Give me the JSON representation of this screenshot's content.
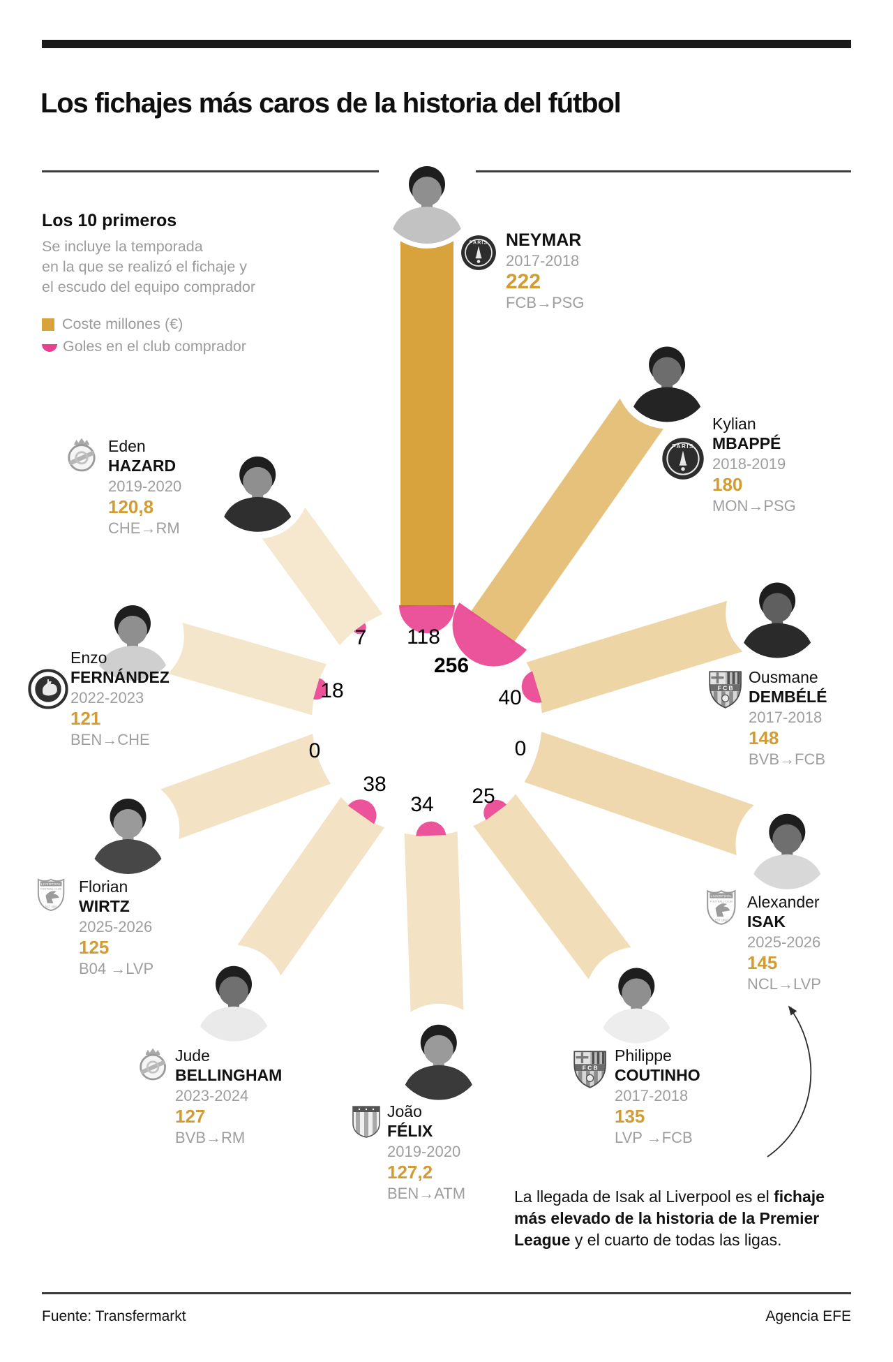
{
  "header": {
    "title": "Los fichajes más caros de la historia del fútbol"
  },
  "intro": {
    "heading": "Los 10 primeros",
    "lines": [
      "Se incluye la temporada",
      "en la que se realizó el fichaje y",
      "el escudo del equipo comprador"
    ]
  },
  "legend": {
    "cost": "Coste millones (€)",
    "goals": "Goles en el club comprador"
  },
  "colors": {
    "gold": "#D8A33C",
    "pink": "#E9418F",
    "gray_text": "#9e9e9e",
    "price_gold": "#D19C33"
  },
  "chart_data": {
    "type": "radial-bar",
    "title": "Los 10 primeros",
    "cost_unit": "millones €",
    "goals_unit": "goles en el club comprador",
    "legend": [
      "Coste millones (€)",
      "Goles en el club comprador"
    ],
    "series": [
      {
        "player_first": "",
        "player_last": "NEYMAR",
        "season": "2017-2018",
        "cost_millions": 222,
        "cost_label": "222",
        "transfer": "FCB→PSG",
        "goals": 118,
        "goals_emphasis": false,
        "crest": "psg"
      },
      {
        "player_first": "Kylian",
        "player_last": "MBAPPÉ",
        "season": "2018-2019",
        "cost_millions": 180,
        "cost_label": "180",
        "transfer": "MON→PSG",
        "goals": 256,
        "goals_emphasis": true,
        "crest": "psg"
      },
      {
        "player_first": "Ousmane",
        "player_last": "DEMBÉLÉ",
        "season": "2017-2018",
        "cost_millions": 148,
        "cost_label": "148",
        "transfer": "BVB→FCB",
        "goals": 40,
        "goals_emphasis": false,
        "crest": "fcb"
      },
      {
        "player_first": "Alexander",
        "player_last": "ISAK",
        "season": "2025-2026",
        "cost_millions": 145,
        "cost_label": "145",
        "transfer": "NCL→LVP",
        "goals": 0,
        "goals_emphasis": false,
        "crest": "lvp"
      },
      {
        "player_first": "Philippe",
        "player_last": "COUTINHO",
        "season": "2017-2018",
        "cost_millions": 135,
        "cost_label": "135",
        "transfer": "LVP →FCB",
        "goals": 25,
        "goals_emphasis": false,
        "crest": "fcb"
      },
      {
        "player_first": "João",
        "player_last": "FÉLIX",
        "season": "2019-2020",
        "cost_millions": 127.2,
        "cost_label": "127,2",
        "transfer": "BEN→ATM",
        "goals": 34,
        "goals_emphasis": false,
        "crest": "atm"
      },
      {
        "player_first": "Jude",
        "player_last": "BELLINGHAM",
        "season": "2023-2024",
        "cost_millions": 127,
        "cost_label": "127",
        "transfer": "BVB→RM",
        "goals": 38,
        "goals_emphasis": false,
        "crest": "rm"
      },
      {
        "player_first": "Florian",
        "player_last": "WIRTZ",
        "season": "2025-2026",
        "cost_millions": 125,
        "cost_label": "125",
        "transfer": "B04 →LVP",
        "goals": 0,
        "goals_emphasis": false,
        "crest": "lvp"
      },
      {
        "player_first": "Enzo",
        "player_last": "FERNÁNDEZ",
        "season": "2022-2023",
        "cost_millions": 121,
        "cost_label": "121",
        "transfer": "BEN→CHE",
        "goals": 18,
        "goals_emphasis": false,
        "crest": "che"
      },
      {
        "player_first": "Eden",
        "player_last": "HAZARD",
        "season": "2019-2020",
        "cost_millions": 120.8,
        "cost_label": "120,8",
        "transfer": "CHE→RM",
        "goals": 7,
        "goals_emphasis": false,
        "crest": "rm"
      }
    ]
  },
  "note": {
    "segments": [
      {
        "text": "La llegada de Isak al Liverpool es el ",
        "bold": false
      },
      {
        "text": "fichaje más elevado de la historia de la Premier League",
        "bold": true
      },
      {
        "text": " y el cuarto de todas las ligas.",
        "bold": false
      }
    ]
  },
  "footer": {
    "source": "Fuente: Transfermarkt",
    "credit": "Agencia EFE"
  }
}
